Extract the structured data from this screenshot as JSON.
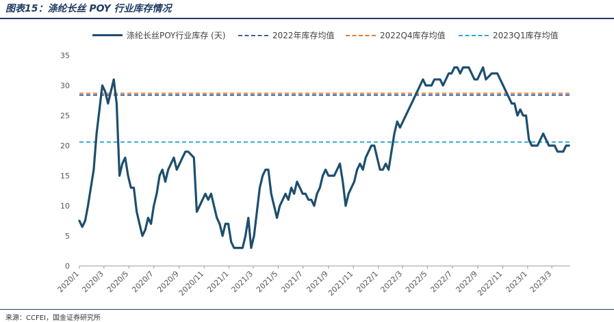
{
  "figure": {
    "title": "图表15：涤纶长丝 POY 行业库存情况",
    "source": "来源：CCFEI，国金证券研究所"
  },
  "chart_data": {
    "type": "line",
    "title": "",
    "xlabel": "",
    "ylabel": "",
    "ylim": [
      0,
      35
    ],
    "yticks": [
      0,
      5,
      10,
      15,
      20,
      25,
      30,
      35
    ],
    "xticks": [
      "2020/1",
      "2020/3",
      "2020/5",
      "2020/7",
      "2020/9",
      "2020/11",
      "2021/1",
      "2021/3",
      "2021/5",
      "2021/7",
      "2021/9",
      "2021/11",
      "2022/1",
      "2022/3",
      "2022/5",
      "2022/7",
      "2022/9",
      "2022/11",
      "2023/1",
      "2023/3"
    ],
    "grid": false,
    "legend_position": "top",
    "series": [
      {
        "name": "涤纶长丝POY行业库存 (天)",
        "style": "solid",
        "color": "#1d4e6e",
        "points": [
          [
            "2020/1/1",
            7.5
          ],
          [
            "2020/1/8",
            6.5
          ],
          [
            "2020/1/15",
            7.5
          ],
          [
            "2020/1/22",
            10
          ],
          [
            "2020/2/5",
            16
          ],
          [
            "2020/2/12",
            22
          ],
          [
            "2020/2/19",
            26
          ],
          [
            "2020/2/26",
            30
          ],
          [
            "2020/3/4",
            29
          ],
          [
            "2020/3/11",
            27
          ],
          [
            "2020/3/18",
            29
          ],
          [
            "2020/3/25",
            31
          ],
          [
            "2020/4/1",
            27
          ],
          [
            "2020/4/8",
            15
          ],
          [
            "2020/4/15",
            17
          ],
          [
            "2020/4/22",
            18
          ],
          [
            "2020/4/29",
            15
          ],
          [
            "2020/5/6",
            13
          ],
          [
            "2020/5/13",
            13
          ],
          [
            "2020/5/20",
            9
          ],
          [
            "2020/5/27",
            7
          ],
          [
            "2020/6/3",
            5
          ],
          [
            "2020/6/10",
            6
          ],
          [
            "2020/6/17",
            8
          ],
          [
            "2020/6/24",
            7
          ],
          [
            "2020/7/1",
            10
          ],
          [
            "2020/7/8",
            12
          ],
          [
            "2020/7/15",
            15
          ],
          [
            "2020/7/22",
            16
          ],
          [
            "2020/7/29",
            14
          ],
          [
            "2020/8/5",
            16
          ],
          [
            "2020/8/12",
            17
          ],
          [
            "2020/8/19",
            18
          ],
          [
            "2020/8/26",
            16
          ],
          [
            "2020/9/2",
            17
          ],
          [
            "2020/9/9",
            18
          ],
          [
            "2020/9/16",
            19
          ],
          [
            "2020/9/23",
            19
          ],
          [
            "2020/9/30",
            18.5
          ],
          [
            "2020/10/7",
            18
          ],
          [
            "2020/10/14",
            9
          ],
          [
            "2020/10/21",
            10
          ],
          [
            "2020/10/28",
            11
          ],
          [
            "2020/11/4",
            12
          ],
          [
            "2020/11/11",
            11
          ],
          [
            "2020/11/18",
            12
          ],
          [
            "2020/11/25",
            10
          ],
          [
            "2020/12/2",
            8
          ],
          [
            "2020/12/9",
            7
          ],
          [
            "2020/12/16",
            5
          ],
          [
            "2020/12/23",
            7
          ],
          [
            "2020/12/30",
            7
          ],
          [
            "2021/1/6",
            4
          ],
          [
            "2021/1/13",
            3
          ],
          [
            "2021/1/20",
            3
          ],
          [
            "2021/1/27",
            3
          ],
          [
            "2021/2/3",
            3
          ],
          [
            "2021/2/10",
            5
          ],
          [
            "2021/2/17",
            8
          ],
          [
            "2021/2/24",
            3
          ],
          [
            "2021/3/3",
            5
          ],
          [
            "2021/3/10",
            9
          ],
          [
            "2021/3/17",
            13
          ],
          [
            "2021/3/24",
            15
          ],
          [
            "2021/3/31",
            16
          ],
          [
            "2021/4/7",
            16
          ],
          [
            "2021/4/14",
            12
          ],
          [
            "2021/4/21",
            10
          ],
          [
            "2021/4/28",
            8
          ],
          [
            "2021/5/5",
            10
          ],
          [
            "2021/5/12",
            11
          ],
          [
            "2021/5/19",
            12
          ],
          [
            "2021/5/26",
            11
          ],
          [
            "2021/6/2",
            13
          ],
          [
            "2021/6/9",
            12
          ],
          [
            "2021/6/16",
            14
          ],
          [
            "2021/6/23",
            13
          ],
          [
            "2021/6/30",
            12
          ],
          [
            "2021/7/7",
            12
          ],
          [
            "2021/7/14",
            11
          ],
          [
            "2021/7/21",
            11
          ],
          [
            "2021/7/28",
            10
          ],
          [
            "2021/8/4",
            12
          ],
          [
            "2021/8/11",
            13
          ],
          [
            "2021/8/18",
            15
          ],
          [
            "2021/8/25",
            16
          ],
          [
            "2021/9/1",
            15
          ],
          [
            "2021/9/8",
            15
          ],
          [
            "2021/9/15",
            15
          ],
          [
            "2021/9/22",
            16
          ],
          [
            "2021/9/29",
            17
          ],
          [
            "2021/10/6",
            14
          ],
          [
            "2021/10/13",
            10
          ],
          [
            "2021/10/20",
            12
          ],
          [
            "2021/10/27",
            13
          ],
          [
            "2021/11/3",
            14
          ],
          [
            "2021/11/10",
            16
          ],
          [
            "2021/11/17",
            17
          ],
          [
            "2021/11/24",
            16
          ],
          [
            "2021/12/1",
            18
          ],
          [
            "2021/12/8",
            19
          ],
          [
            "2021/12/15",
            20
          ],
          [
            "2021/12/22",
            20
          ],
          [
            "2021/12/29",
            18
          ],
          [
            "2022/1/5",
            16
          ],
          [
            "2022/1/12",
            16
          ],
          [
            "2022/1/19",
            17
          ],
          [
            "2022/1/26",
            16
          ],
          [
            "2022/2/2",
            19
          ],
          [
            "2022/2/9",
            22
          ],
          [
            "2022/2/16",
            24
          ],
          [
            "2022/2/23",
            23
          ],
          [
            "2022/3/2",
            24
          ],
          [
            "2022/3/16",
            26
          ],
          [
            "2022/3/30",
            28
          ],
          [
            "2022/4/13",
            30
          ],
          [
            "2022/4/20",
            31
          ],
          [
            "2022/4/27",
            30
          ],
          [
            "2022/5/4",
            30
          ],
          [
            "2022/5/11",
            30
          ],
          [
            "2022/5/18",
            31
          ],
          [
            "2022/5/25",
            31
          ],
          [
            "2022/6/1",
            31
          ],
          [
            "2022/6/8",
            30
          ],
          [
            "2022/6/15",
            31
          ],
          [
            "2022/6/22",
            32
          ],
          [
            "2022/6/29",
            32
          ],
          [
            "2022/7/6",
            33
          ],
          [
            "2022/7/13",
            33
          ],
          [
            "2022/7/20",
            32
          ],
          [
            "2022/7/27",
            33
          ],
          [
            "2022/8/3",
            33
          ],
          [
            "2022/8/10",
            33
          ],
          [
            "2022/8/17",
            32
          ],
          [
            "2022/8/24",
            31
          ],
          [
            "2022/8/31",
            31
          ],
          [
            "2022/9/7",
            32
          ],
          [
            "2022/9/14",
            33
          ],
          [
            "2022/9/21",
            31
          ],
          [
            "2022/9/28",
            31.5
          ],
          [
            "2022/10/5",
            32
          ],
          [
            "2022/10/12",
            32
          ],
          [
            "2022/10/19",
            32
          ],
          [
            "2022/10/26",
            31
          ],
          [
            "2022/11/2",
            30
          ],
          [
            "2022/11/9",
            29
          ],
          [
            "2022/11/16",
            28
          ],
          [
            "2022/11/23",
            27
          ],
          [
            "2022/11/30",
            27
          ],
          [
            "2022/12/7",
            25
          ],
          [
            "2022/12/14",
            26
          ],
          [
            "2022/12/21",
            25
          ],
          [
            "2022/12/28",
            25
          ],
          [
            "2023/1/4",
            21
          ],
          [
            "2023/1/11",
            20
          ],
          [
            "2023/1/18",
            20
          ],
          [
            "2023/1/25",
            20
          ],
          [
            "2023/2/1",
            21
          ],
          [
            "2023/2/8",
            22
          ],
          [
            "2023/2/15",
            21
          ],
          [
            "2023/2/22",
            20
          ],
          [
            "2023/3/1",
            20
          ],
          [
            "2023/3/8",
            20
          ],
          [
            "2023/3/15",
            19
          ],
          [
            "2023/3/22",
            19
          ],
          [
            "2023/3/29",
            19
          ],
          [
            "2023/4/5",
            20
          ],
          [
            "2023/4/12",
            20
          ]
        ]
      },
      {
        "name": "2022年库存均值",
        "style": "dashed",
        "color": "#3a5da8",
        "value": 28.4
      },
      {
        "name": "2022Q4库存均值",
        "style": "dashed",
        "color": "#e07b39",
        "value": 28.7
      },
      {
        "name": "2023Q1库存均值",
        "style": "dashed",
        "color": "#2aa9d8",
        "value": 20.6
      }
    ]
  }
}
